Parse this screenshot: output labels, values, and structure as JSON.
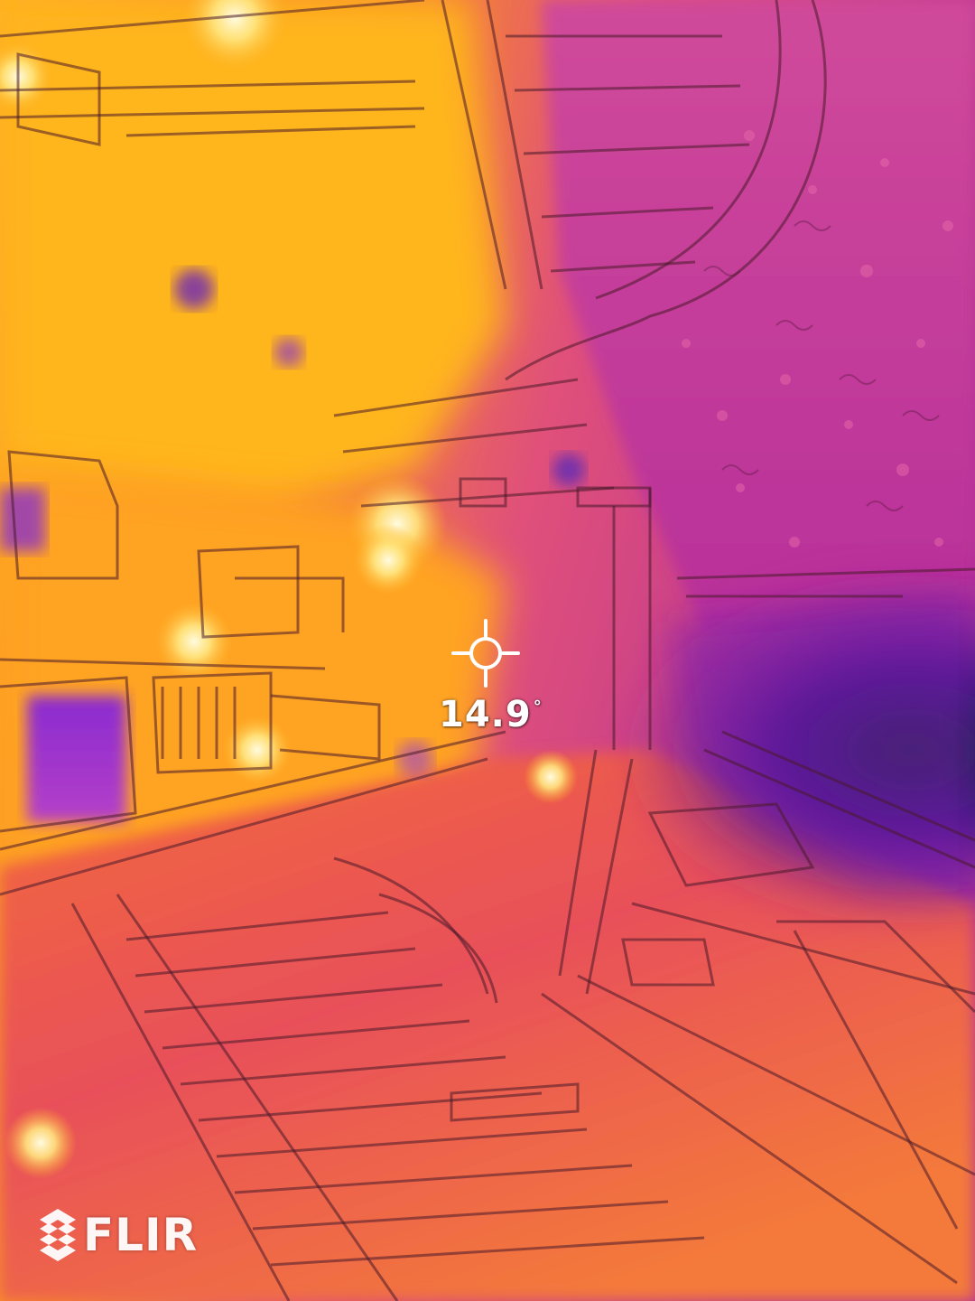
{
  "measurement": {
    "value": "14.9",
    "unit_symbol": "°"
  },
  "brand": {
    "name": "FLIR",
    "mark_icon": "flir-logo-icon"
  },
  "crosshair": {
    "icon": "spot-meter-crosshair-icon"
  },
  "palette": {
    "hot": "#fff7a0",
    "warm": "#ffb31a",
    "mid": "#f0603a",
    "cool": "#c0309a",
    "cold": "#5a1a8a",
    "coldest": "#0a2a2a"
  }
}
